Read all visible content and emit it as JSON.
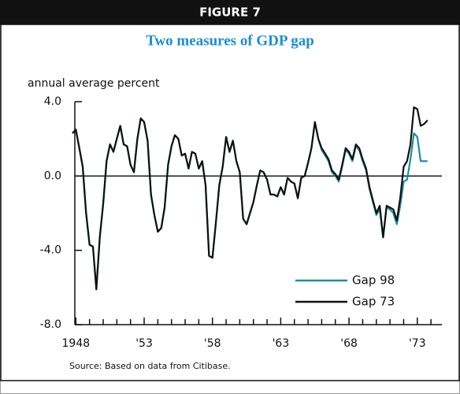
{
  "chart_data": {
    "type": "line",
    "header": "FIGURE 7",
    "title": "Two measures of GDP gap",
    "ylabel": "annual average percent",
    "source": "Source: Based on data from Citibase.",
    "x": [
      1947.75,
      1948,
      1948.25,
      1948.5,
      1948.75,
      1949,
      1949.25,
      1949.5,
      1949.75,
      1950,
      1950.25,
      1950.5,
      1950.75,
      1951,
      1951.25,
      1951.5,
      1951.75,
      1952,
      1952.25,
      1952.5,
      1952.75,
      1953,
      1953.25,
      1953.5,
      1953.75,
      1954,
      1954.25,
      1954.5,
      1954.75,
      1955,
      1955.25,
      1955.5,
      1955.75,
      1956,
      1956.25,
      1956.5,
      1956.75,
      1957,
      1957.25,
      1957.5,
      1957.75,
      1958,
      1958.25,
      1958.5,
      1958.75,
      1959,
      1959.25,
      1959.5,
      1959.75,
      1960,
      1960.25,
      1960.5,
      1960.75,
      1961,
      1961.25,
      1961.5,
      1961.75,
      1962,
      1962.25,
      1962.5,
      1962.75,
      1963,
      1963.25,
      1963.5,
      1963.75,
      1964,
      1964.25,
      1964.5,
      1964.75,
      1965,
      1965.25,
      1965.5,
      1965.75,
      1966,
      1966.25,
      1966.5,
      1966.75,
      1967,
      1967.25,
      1967.5,
      1967.75,
      1968,
      1968.25,
      1968.5,
      1968.75,
      1969,
      1969.25,
      1969.5,
      1969.75,
      1970,
      1970.25,
      1970.5,
      1970.75,
      1971,
      1971.25,
      1971.5,
      1971.75,
      1972,
      1972.25,
      1972.5,
      1972.75,
      1973,
      1973.25,
      1973.5,
      1973.75
    ],
    "series": [
      {
        "name": "Gap 98",
        "color": "#1a8fa3",
        "values": [
          2.3,
          2.5,
          1.5,
          0.5,
          -2.0,
          -3.7,
          -3.8,
          -6.1,
          -3.3,
          -1.5,
          0.8,
          1.7,
          1.3,
          2.0,
          2.7,
          1.7,
          1.6,
          0.6,
          0.2,
          2.0,
          3.1,
          2.9,
          1.9,
          -1.0,
          -2.1,
          -3.0,
          -2.8,
          -1.7,
          0.6,
          1.6,
          2.2,
          2.0,
          1.1,
          1.2,
          0.4,
          1.3,
          1.2,
          0.4,
          0.8,
          -0.5,
          -4.3,
          -4.4,
          -2.5,
          -0.5,
          0.5,
          2.1,
          1.3,
          1.9,
          0.8,
          0.2,
          -2.3,
          -2.6,
          -2.0,
          -1.4,
          -0.5,
          0.3,
          0.2,
          -0.2,
          -1.0,
          -1.0,
          -1.1,
          -0.6,
          -1.0,
          -0.1,
          -0.3,
          -0.4,
          -1.2,
          -0.1,
          0.0,
          0.7,
          1.5,
          2.9,
          2.0,
          1.4,
          1.1,
          0.8,
          0.2,
          0.0,
          -0.3,
          0.5,
          1.4,
          1.2,
          0.8,
          1.6,
          1.4,
          0.8,
          0.3,
          -0.7,
          -1.4,
          -2.1,
          -1.8,
          -3.3,
          -1.7,
          -1.8,
          -2.0,
          -2.6,
          -1.6,
          -0.3,
          -0.2,
          0.9,
          2.3,
          2.1,
          0.8,
          0.8,
          0.8
        ]
      },
      {
        "name": "Gap 73",
        "color": "#111111",
        "values": [
          2.3,
          2.5,
          1.5,
          0.5,
          -2.0,
          -3.7,
          -3.8,
          -6.1,
          -3.3,
          -1.5,
          0.8,
          1.7,
          1.3,
          2.0,
          2.7,
          1.7,
          1.6,
          0.6,
          0.2,
          2.0,
          3.1,
          2.9,
          1.9,
          -1.0,
          -2.1,
          -3.0,
          -2.8,
          -1.7,
          0.6,
          1.6,
          2.2,
          2.0,
          1.1,
          1.2,
          0.4,
          1.3,
          1.2,
          0.4,
          0.8,
          -0.5,
          -4.3,
          -4.4,
          -2.5,
          -0.5,
          0.5,
          2.1,
          1.3,
          1.9,
          0.8,
          0.2,
          -2.3,
          -2.6,
          -2.0,
          -1.4,
          -0.5,
          0.3,
          0.2,
          -0.2,
          -1.0,
          -1.0,
          -1.1,
          -0.6,
          -1.0,
          -0.1,
          -0.3,
          -0.4,
          -1.2,
          -0.1,
          0.0,
          0.7,
          1.5,
          2.9,
          2.0,
          1.5,
          1.2,
          0.9,
          0.3,
          0.1,
          -0.2,
          0.6,
          1.5,
          1.3,
          0.9,
          1.7,
          1.5,
          0.9,
          0.4,
          -0.6,
          -1.3,
          -2.0,
          -1.6,
          -3.3,
          -1.6,
          -1.7,
          -1.8,
          -2.4,
          -1.2,
          0.5,
          0.8,
          1.7,
          3.7,
          3.6,
          2.7,
          2.8,
          3.0
        ]
      }
    ],
    "xlim": [
      1947.75,
      1974.8
    ],
    "ylim": [
      -8,
      4
    ],
    "yticks": [
      {
        "value": -8,
        "label": "-8.0"
      },
      {
        "value": -4,
        "label": "-4.0"
      },
      {
        "value": 0,
        "label": "0.0"
      },
      {
        "value": 4,
        "label": "4.0"
      }
    ],
    "xticks": [
      {
        "value": 1948,
        "label": "1948"
      },
      {
        "value": 1953,
        "label": "'53"
      },
      {
        "value": 1958,
        "label": "'58"
      },
      {
        "value": 1963,
        "label": "'63"
      },
      {
        "value": 1968,
        "label": "'68"
      },
      {
        "value": 1973,
        "label": "'73"
      }
    ],
    "xminorticks": [
      1949,
      1950,
      1951,
      1952,
      1954,
      1955,
      1956,
      1957,
      1959,
      1960,
      1961,
      1962,
      1964,
      1965,
      1966,
      1967,
      1969,
      1970,
      1971,
      1972,
      1974
    ],
    "axhline": 0,
    "legend": "lower right"
  }
}
